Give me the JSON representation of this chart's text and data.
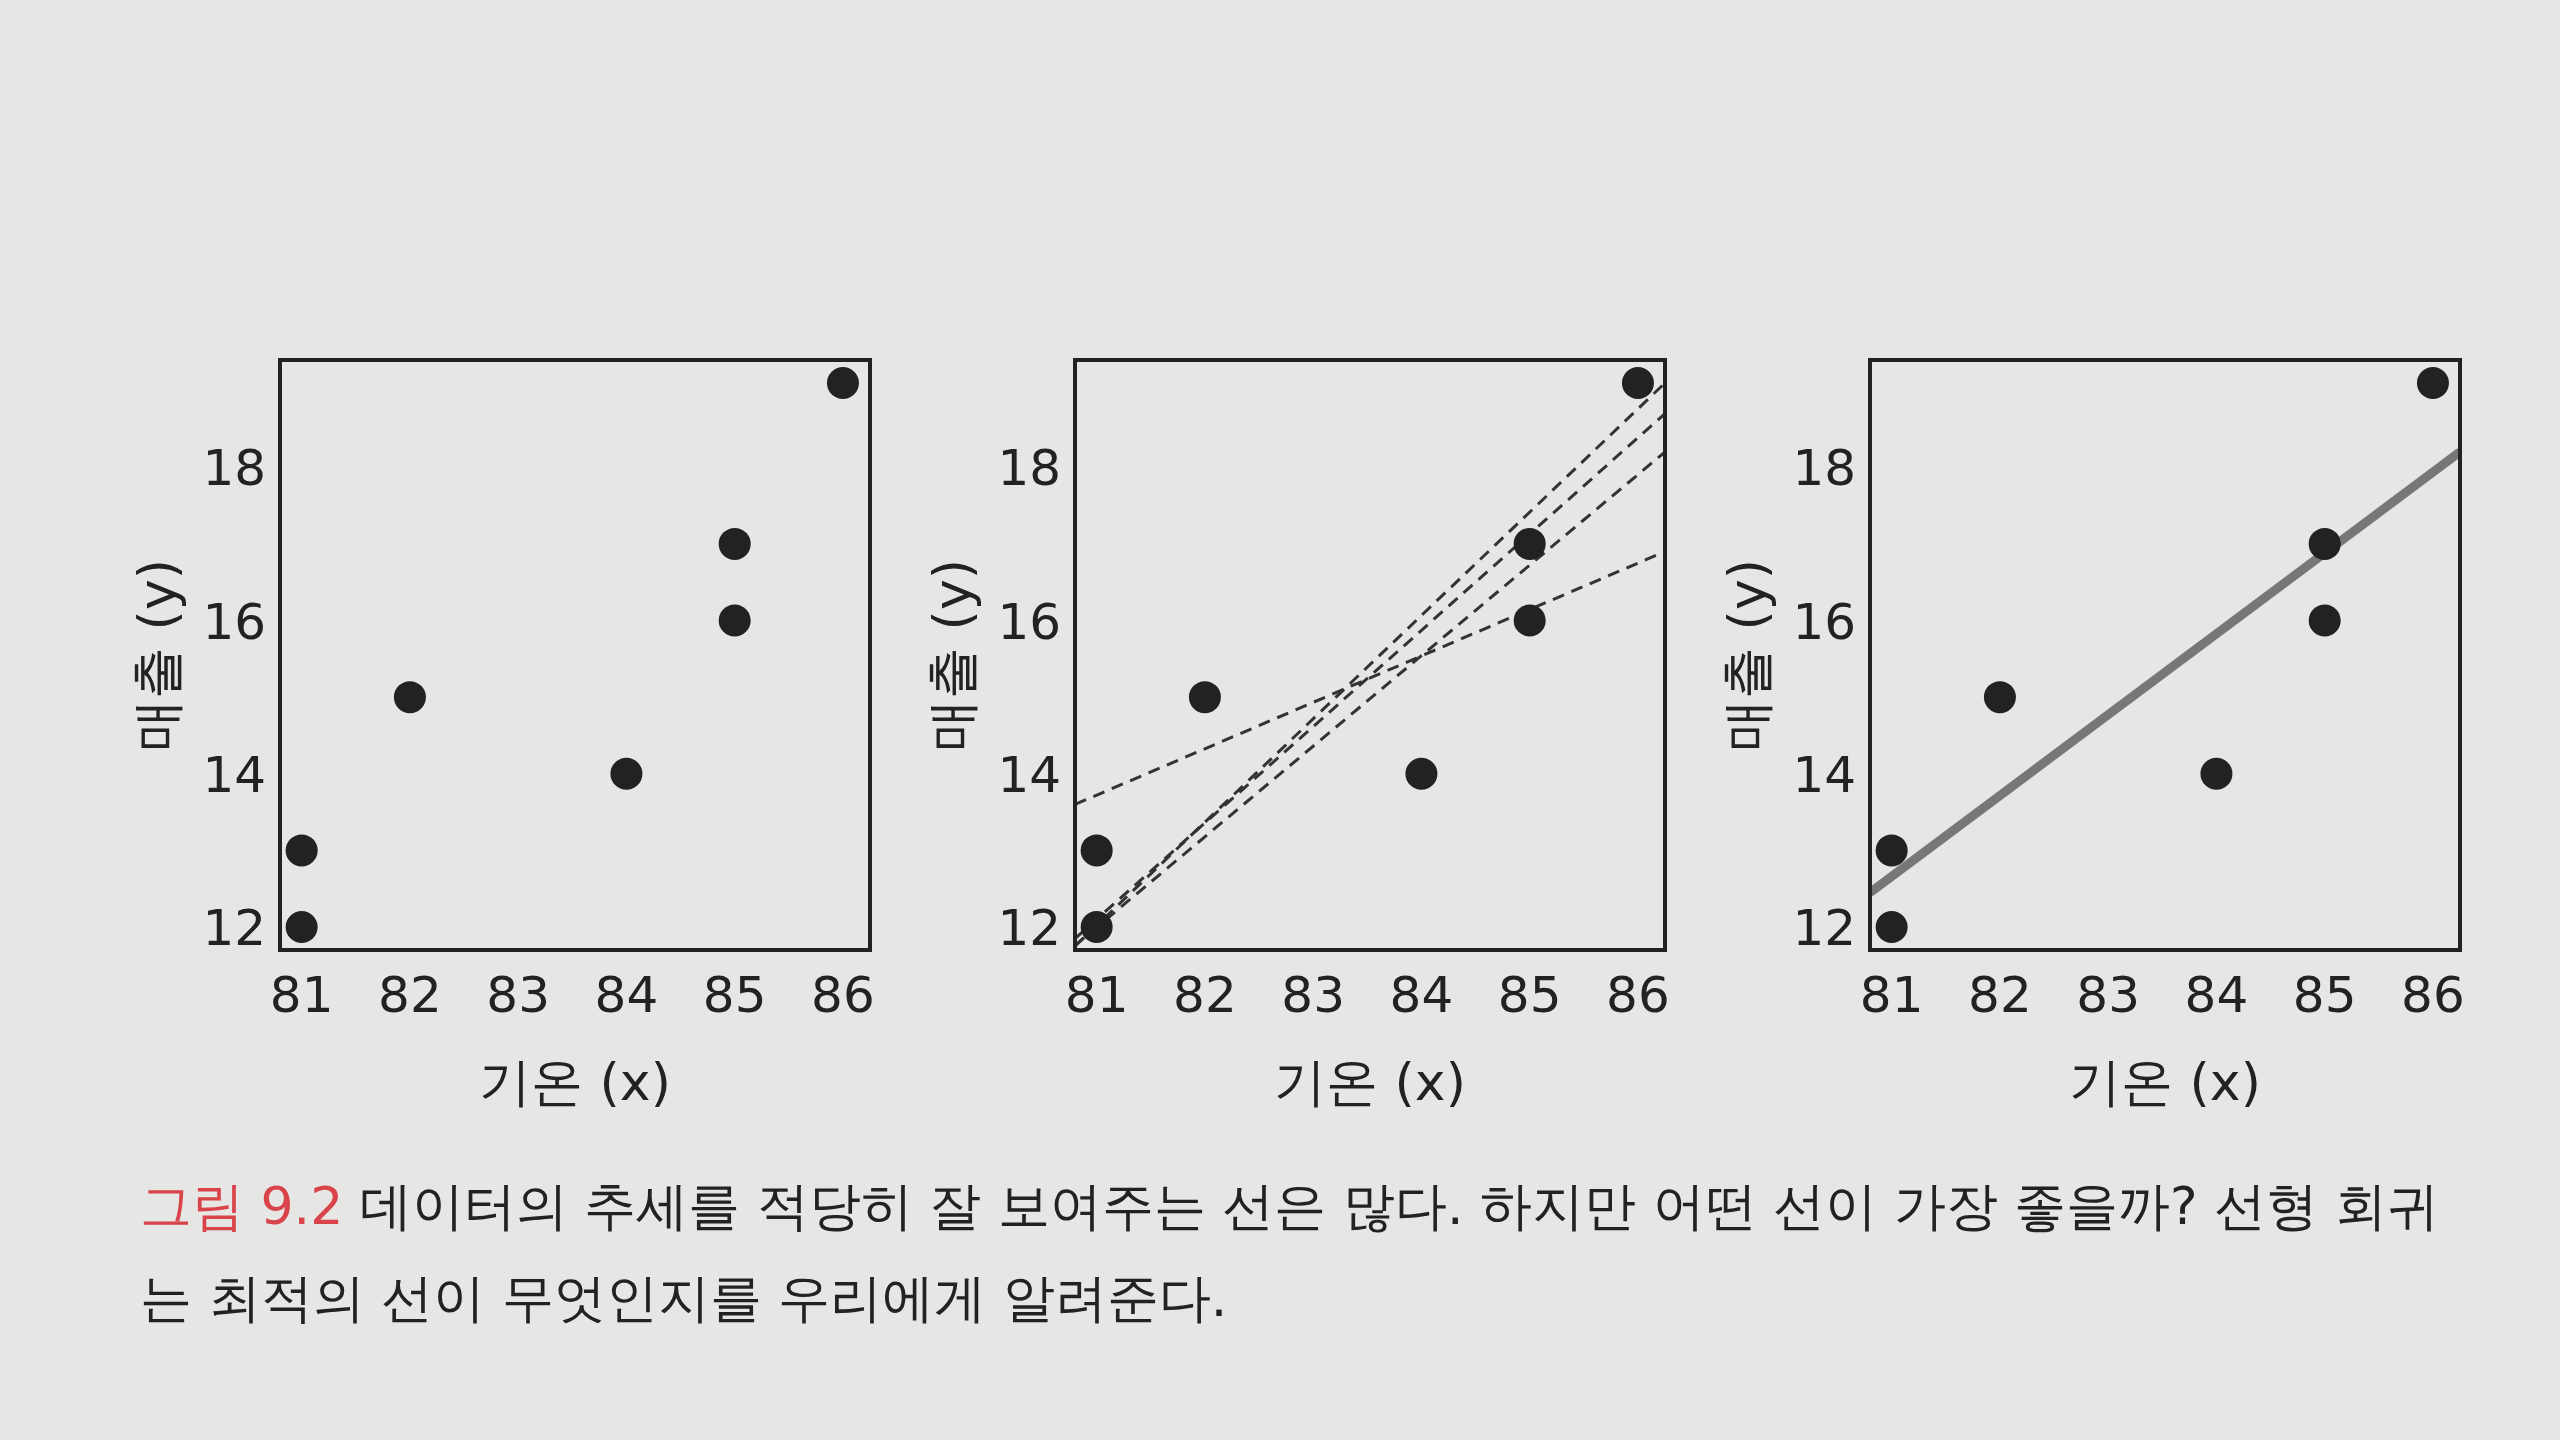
{
  "chart_data": [
    {
      "type": "scatter",
      "xlabel": "기온 (x)",
      "ylabel": "매출 (y)",
      "xlim": [
        80.8,
        86.25
      ],
      "ylim": [
        11.7,
        19.4
      ],
      "xticks": [
        81,
        82,
        83,
        84,
        85,
        86
      ],
      "yticks": [
        12,
        14,
        16,
        18
      ],
      "grid": false,
      "series": [
        {
          "color": "#222222",
          "marker": "circle",
          "x": [
            81,
            81,
            82,
            84,
            85,
            85,
            86
          ],
          "values": [
            12,
            13,
            15,
            14,
            16,
            17,
            19.1
          ]
        }
      ]
    },
    {
      "type": "scatter",
      "xlabel": "기온 (x)",
      "ylabel": "매출 (y)",
      "xlim": [
        80.8,
        86.25
      ],
      "ylim": [
        11.7,
        19.4
      ],
      "xticks": [
        81,
        82,
        83,
        84,
        85,
        86
      ],
      "yticks": [
        12,
        14,
        16,
        18
      ],
      "grid": false,
      "series": [
        {
          "color": "#222222",
          "marker": "circle",
          "x": [
            81,
            81,
            82,
            84,
            85,
            85,
            86
          ],
          "values": [
            12,
            13,
            15,
            14,
            16,
            17,
            19.1
          ]
        },
        {
          "type": "line",
          "line_style": "dashed",
          "color": "#333333",
          "x": [
            80.8,
            86.25
          ],
          "values": [
            13.6,
            16.9
          ]
        },
        {
          "type": "line",
          "line_style": "dashed",
          "color": "#333333",
          "x": [
            80.8,
            86.25
          ],
          "values": [
            11.75,
            19.1
          ]
        },
        {
          "type": "line",
          "line_style": "dashed",
          "color": "#333333",
          "x": [
            80.8,
            86.25
          ],
          "values": [
            11.85,
            18.7
          ]
        },
        {
          "type": "line",
          "line_style": "dashed",
          "color": "#333333",
          "x": [
            80.8,
            86.25
          ],
          "values": [
            11.76,
            18.2
          ]
        }
      ]
    },
    {
      "type": "scatter",
      "xlabel": "기온 (x)",
      "ylabel": "매출 (y)",
      "xlim": [
        80.8,
        86.25
      ],
      "ylim": [
        11.7,
        19.4
      ],
      "xticks": [
        81,
        82,
        83,
        84,
        85,
        86
      ],
      "yticks": [
        12,
        14,
        16,
        18
      ],
      "grid": false,
      "annotations": [
        "그림 9.2",
        "데이터의 추세를 적당히 잘 보여주는 선은 많다. 하지만 어떤 선이 가장 좋을까? 선형 회귀는 최적의 선이 무엇인지를 우리에게 알려준다."
      ],
      "series": [
        {
          "color": "#222222",
          "marker": "circle",
          "x": [
            81,
            81,
            82,
            84,
            85,
            85,
            86
          ],
          "values": [
            12,
            13,
            15,
            14,
            16,
            17,
            19.1
          ]
        },
        {
          "type": "line",
          "line_style": "solid",
          "color": "#777777",
          "x": [
            80.8,
            86.25
          ],
          "values": [
            12.45,
            18.2
          ]
        }
      ]
    }
  ]
}
